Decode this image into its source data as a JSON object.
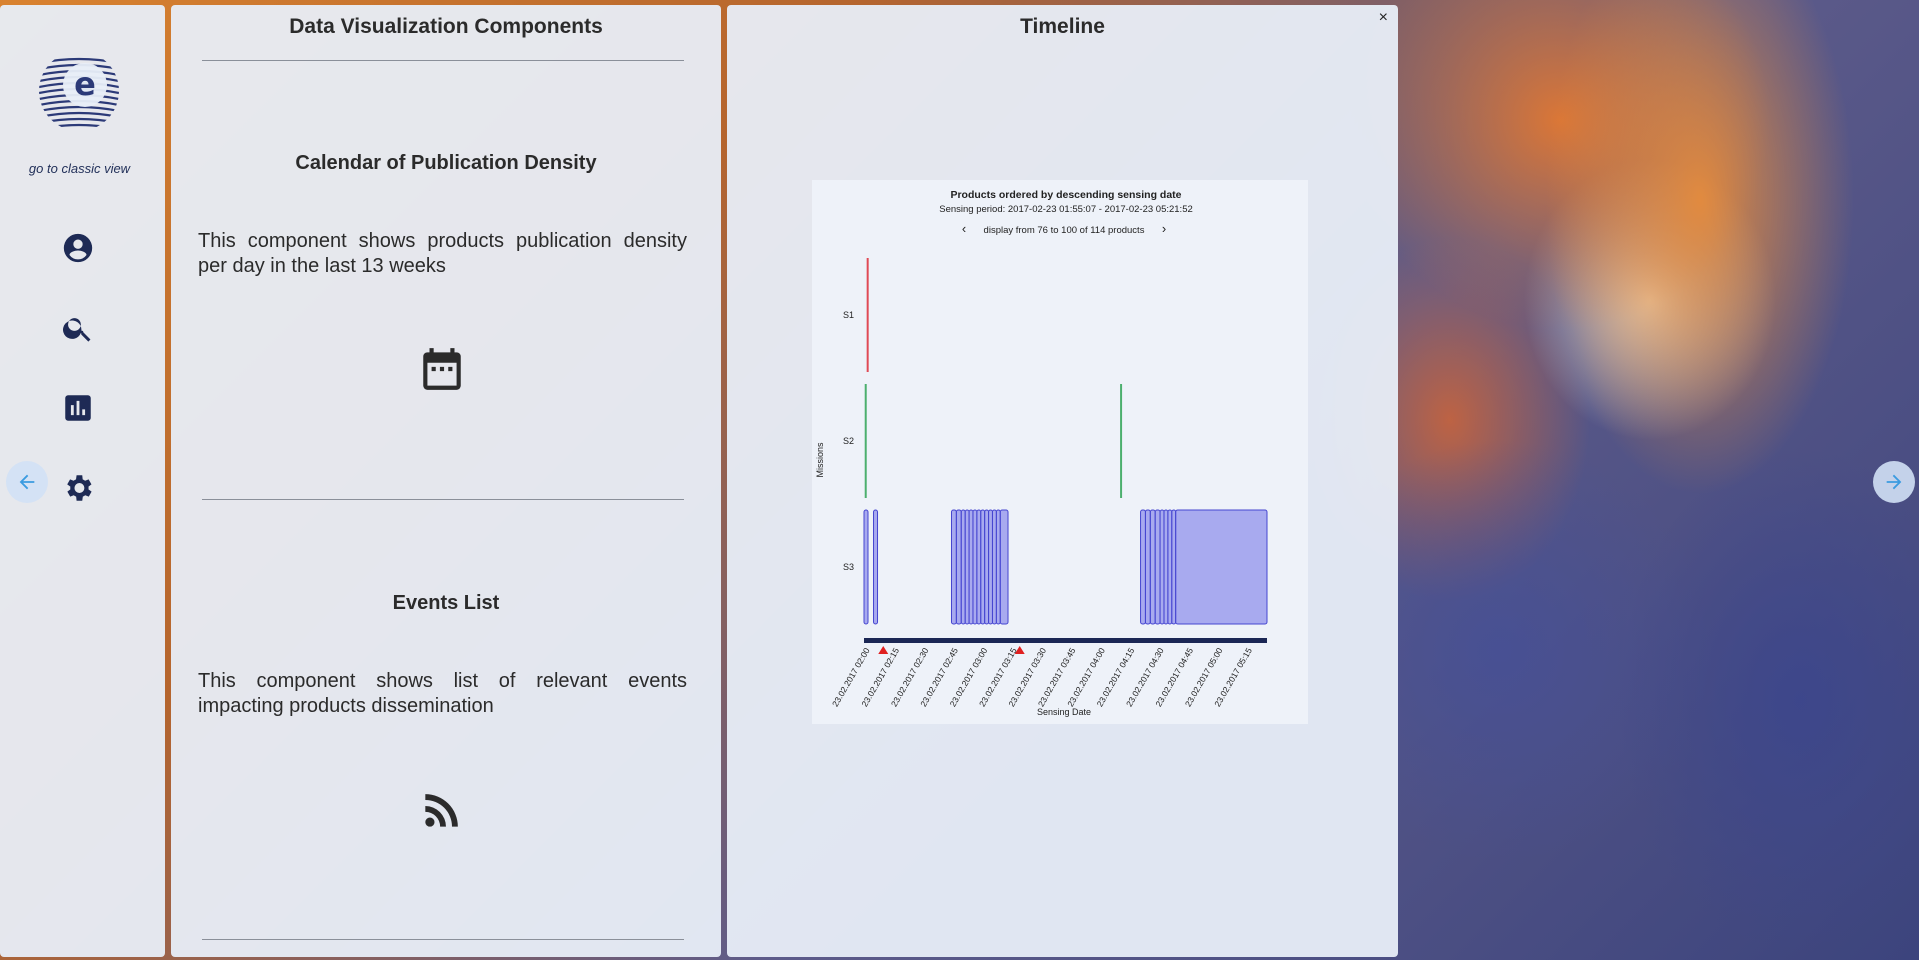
{
  "sidebar": {
    "classic_view_label": "go to classic view",
    "icons": [
      "account-icon",
      "search-icon",
      "bar-chart-icon",
      "gear-icon"
    ],
    "accent_color": "#1e2a55"
  },
  "viz_panel": {
    "title": "Data Visualization Components",
    "sections": [
      {
        "title": "Calendar of Publication Density",
        "description": "This component shows products publication density per day in the last 13 weeks",
        "icon": "calendar-icon"
      },
      {
        "title": "Events List",
        "description": "This component shows list of relevant events impacting products dissemination",
        "icon": "rss-feed-icon"
      }
    ]
  },
  "timeline_panel": {
    "title": "Timeline",
    "close_label": "×"
  },
  "chart_data": {
    "type": "timeline",
    "title": "Products ordered by descending sensing date",
    "subtitle": "Sensing period: 2017-02-23 01:55:07 - 2017-02-23 05:21:52",
    "pagination": {
      "label": "display from 76 to 100 of 114 products",
      "prev": "‹",
      "next": "›"
    },
    "xlabel": "Sensing Date",
    "ylabel": "Missions",
    "categories": [
      "S1",
      "S2",
      "S3"
    ],
    "x_ticks": [
      "23.02.2017 02:00",
      "23.02.2017 02:15",
      "23.02.2017 02:30",
      "23.02.2017 02:45",
      "23.02.2017 03:00",
      "23.02.2017 03:15",
      "23.02.2017 03:30",
      "23.02.2017 03:45",
      "23.02.2017 04:00",
      "23.02.2017 04:15",
      "23.02.2017 04:30",
      "23.02.2017 04:45",
      "23.02.2017 05:00",
      "23.02.2017 05:15"
    ],
    "x_range": [
      "2017-02-23 01:55:07",
      "2017-02-23 05:21:52"
    ],
    "colors": {
      "S1": "#e04a55",
      "S2": "#4caf6e",
      "S3": "#6f6fe8",
      "axis": "#1b2755",
      "event": "#e02020"
    },
    "series": [
      {
        "name": "S1",
        "intervals": [
          [
            "01:57:00",
            "01:57:30"
          ]
        ]
      },
      {
        "name": "S2",
        "intervals": [
          [
            "01:56:00",
            "01:56:30"
          ],
          [
            "04:07:00",
            "04:07:30"
          ]
        ]
      },
      {
        "name": "S3",
        "intervals": [
          [
            "01:55:07",
            "01:56:50"
          ],
          [
            "02:00:00",
            "02:01:30"
          ],
          [
            "02:40:00",
            "02:42:30"
          ],
          [
            "02:42:30",
            "02:45:00"
          ],
          [
            "02:45:00",
            "02:47:00"
          ],
          [
            "02:47:00",
            "02:49:00"
          ],
          [
            "02:49:00",
            "02:51:00"
          ],
          [
            "02:51:00",
            "02:53:00"
          ],
          [
            "02:53:00",
            "02:55:00"
          ],
          [
            "02:55:00",
            "02:57:00"
          ],
          [
            "02:57:00",
            "02:59:00"
          ],
          [
            "02:59:00",
            "03:01:00"
          ],
          [
            "03:01:00",
            "03:03:00"
          ],
          [
            "03:03:00",
            "03:05:00"
          ],
          [
            "03:05:00",
            "03:09:00"
          ],
          [
            "04:17:00",
            "04:19:30"
          ],
          [
            "04:19:30",
            "04:22:00"
          ],
          [
            "04:22:00",
            "04:24:30"
          ],
          [
            "04:24:30",
            "04:27:00"
          ],
          [
            "04:27:00",
            "04:29:00"
          ],
          [
            "04:29:00",
            "04:31:00"
          ],
          [
            "04:31:00",
            "04:33:00"
          ],
          [
            "04:33:00",
            "04:35:00"
          ],
          [
            "04:35:00",
            "05:21:52"
          ]
        ]
      }
    ],
    "events": [
      "02:05:00",
      "03:15:00"
    ]
  }
}
